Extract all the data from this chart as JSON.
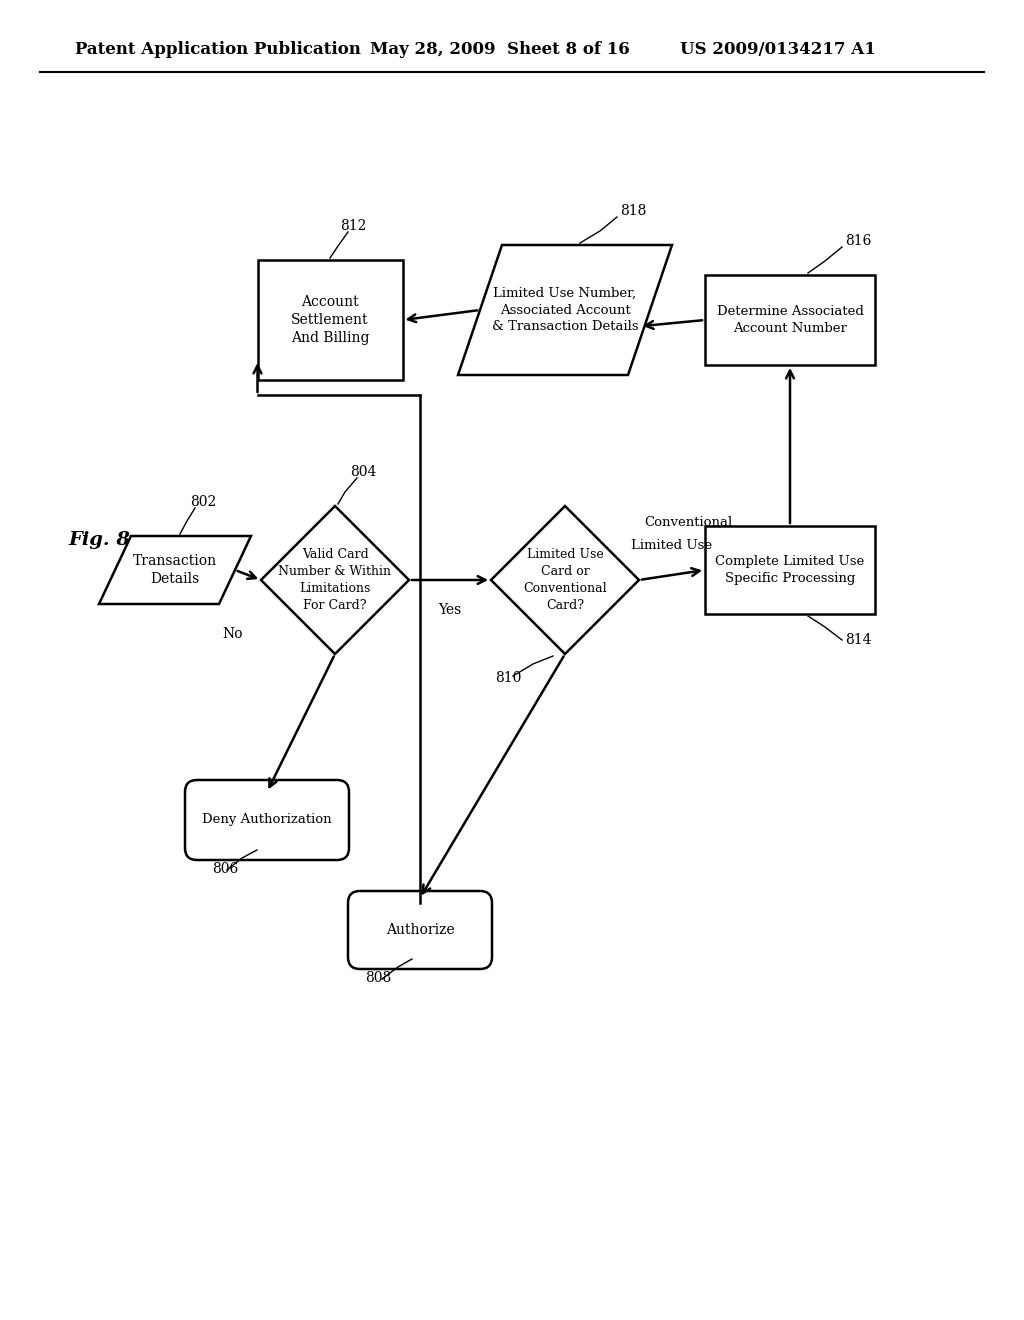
{
  "bg_color": "#ffffff",
  "header_left": "Patent Application Publication",
  "header_mid": "May 28, 2009  Sheet 8 of 16",
  "header_right": "US 2009/0134217 A1",
  "fig_label": "Fig. 8"
}
